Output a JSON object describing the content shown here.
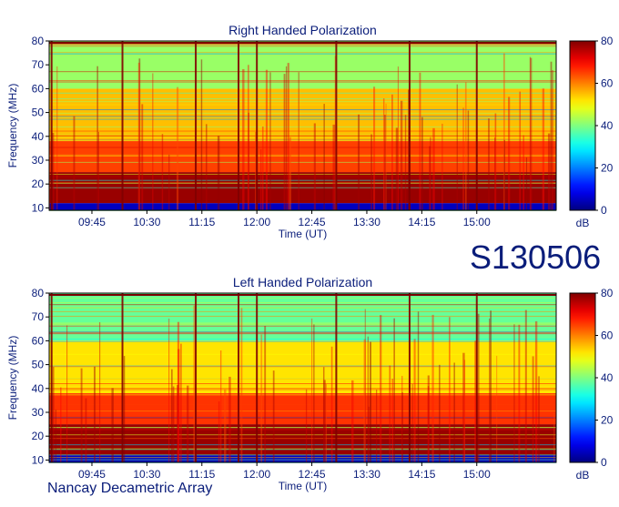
{
  "observation_id": "S130506",
  "instrument": "Nancay Decametric Array",
  "colors": {
    "text": "#0a1d7a"
  },
  "chart_data": [
    {
      "type": "heatmap",
      "title": "Right Handed Polarization",
      "xlabel": "Time (UT)",
      "ylabel": "Frequency (MHz)",
      "colorbar_label": "dB",
      "colorbar_ticks": [
        0,
        20,
        40,
        60,
        80
      ],
      "clim": [
        0,
        80
      ],
      "xlim": [
        "09:10",
        "16:05"
      ],
      "ylim": [
        9,
        80
      ],
      "x_ticks": [
        "09:45",
        "10:30",
        "11:15",
        "12:00",
        "12:45",
        "13:30",
        "14:15",
        "15:00"
      ],
      "y_ticks": [
        10,
        20,
        30,
        40,
        50,
        60,
        70,
        80
      ],
      "colormap": "jet",
      "bands": [
        {
          "freq_range": [
            9,
            12
          ],
          "level_db": 5
        },
        {
          "freq_range": [
            12,
            25
          ],
          "level_db": 78
        },
        {
          "freq_range": [
            25,
            38
          ],
          "level_db": 65
        },
        {
          "freq_range": [
            38,
            60
          ],
          "level_db": 55
        },
        {
          "freq_range": [
            60,
            80
          ],
          "level_db": 42
        }
      ],
      "bright_times": [
        "09:12",
        "10:10",
        "11:10",
        "11:45",
        "12:00",
        "13:05",
        "14:05",
        "15:00"
      ]
    },
    {
      "type": "heatmap",
      "title": "Left Handed Polarization",
      "xlabel": "Time (UT)",
      "ylabel": "Frequency (MHz)",
      "colorbar_label": "dB",
      "colorbar_ticks": [
        0,
        20,
        40,
        60,
        80
      ],
      "clim": [
        0,
        80
      ],
      "xlim": [
        "09:10",
        "16:05"
      ],
      "ylim": [
        9,
        80
      ],
      "x_ticks": [
        "09:45",
        "10:30",
        "11:15",
        "12:00",
        "12:45",
        "13:30",
        "14:15",
        "15:00"
      ],
      "y_ticks": [
        10,
        20,
        30,
        40,
        50,
        60,
        70,
        80
      ],
      "colormap": "jet",
      "bands": [
        {
          "freq_range": [
            9,
            12
          ],
          "level_db": 5
        },
        {
          "freq_range": [
            12,
            25
          ],
          "level_db": 78
        },
        {
          "freq_range": [
            25,
            38
          ],
          "level_db": 66
        },
        {
          "freq_range": [
            38,
            60
          ],
          "level_db": 52
        },
        {
          "freq_range": [
            60,
            80
          ],
          "level_db": 38
        }
      ],
      "bright_times": [
        "09:12",
        "10:10",
        "11:10",
        "11:45",
        "12:00",
        "13:05",
        "14:05",
        "15:00"
      ]
    }
  ]
}
